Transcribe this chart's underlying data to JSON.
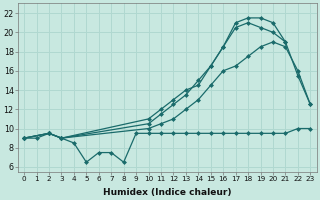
{
  "xlabel": "Humidex (Indice chaleur)",
  "background_color": "#c8e8e0",
  "grid_color": "#b0d8d0",
  "line_color": "#1a6b6b",
  "xlim": [
    -0.5,
    23.5
  ],
  "ylim": [
    5.5,
    23.0
  ],
  "yticks": [
    6,
    8,
    10,
    12,
    14,
    16,
    18,
    20,
    22
  ],
  "s1_x": [
    0,
    1,
    2,
    3,
    4,
    5,
    6,
    7,
    8,
    9,
    10,
    11,
    12,
    13,
    14,
    15,
    16,
    17,
    18,
    19,
    20,
    21,
    22,
    23
  ],
  "s1_y": [
    9,
    9,
    9.5,
    9,
    8.5,
    6.5,
    7.5,
    7.5,
    6.5,
    9.5,
    9.5,
    9.5,
    9.5,
    9.5,
    9.5,
    9.5,
    9.5,
    9.5,
    9.5,
    9.5,
    9.5,
    9.5,
    10,
    10
  ],
  "s2_x": [
    0,
    2,
    3,
    10,
    11,
    12,
    13,
    14,
    15,
    16,
    17,
    18,
    19,
    20,
    21,
    22,
    23
  ],
  "s2_y": [
    9,
    9.5,
    9,
    10,
    10.5,
    11,
    12,
    13,
    14.5,
    16,
    16.5,
    17.5,
    18.5,
    19,
    18.5,
    16,
    12.5
  ],
  "s3_x": [
    0,
    2,
    3,
    10,
    11,
    12,
    13,
    14,
    15,
    16,
    17,
    18,
    19,
    20,
    21
  ],
  "s3_y": [
    9,
    9.5,
    9,
    10.5,
    11.5,
    12.5,
    13.5,
    15,
    16.5,
    18.5,
    20.5,
    21,
    20.5,
    20,
    19
  ],
  "s4_x": [
    0,
    2,
    3,
    10,
    11,
    12,
    13,
    14,
    15,
    16,
    17,
    18,
    19,
    20,
    21,
    22,
    23
  ],
  "s4_y": [
    9,
    9.5,
    9,
    11,
    12,
    13,
    14,
    14.5,
    16.5,
    18.5,
    21,
    21.5,
    21.5,
    21,
    19,
    15.5,
    12.5
  ]
}
